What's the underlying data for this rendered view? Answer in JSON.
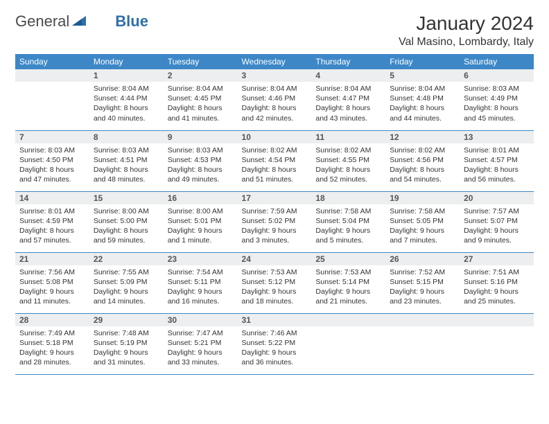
{
  "logo": {
    "word1": "General",
    "word2": "Blue"
  },
  "title": "January 2024",
  "location": "Val Masino, Lombardy, Italy",
  "colors": {
    "header_bg": "#3d87c7",
    "header_fg": "#ffffff",
    "daynum_bg": "#eceeef",
    "daynum_fg": "#555555",
    "border": "#3d87c7",
    "logo_blue": "#2f6fa8"
  },
  "weekdays": [
    "Sunday",
    "Monday",
    "Tuesday",
    "Wednesday",
    "Thursday",
    "Friday",
    "Saturday"
  ],
  "weeks": [
    [
      {
        "n": "",
        "lines": []
      },
      {
        "n": "1",
        "lines": [
          "Sunrise: 8:04 AM",
          "Sunset: 4:44 PM",
          "Daylight: 8 hours",
          "and 40 minutes."
        ]
      },
      {
        "n": "2",
        "lines": [
          "Sunrise: 8:04 AM",
          "Sunset: 4:45 PM",
          "Daylight: 8 hours",
          "and 41 minutes."
        ]
      },
      {
        "n": "3",
        "lines": [
          "Sunrise: 8:04 AM",
          "Sunset: 4:46 PM",
          "Daylight: 8 hours",
          "and 42 minutes."
        ]
      },
      {
        "n": "4",
        "lines": [
          "Sunrise: 8:04 AM",
          "Sunset: 4:47 PM",
          "Daylight: 8 hours",
          "and 43 minutes."
        ]
      },
      {
        "n": "5",
        "lines": [
          "Sunrise: 8:04 AM",
          "Sunset: 4:48 PM",
          "Daylight: 8 hours",
          "and 44 minutes."
        ]
      },
      {
        "n": "6",
        "lines": [
          "Sunrise: 8:03 AM",
          "Sunset: 4:49 PM",
          "Daylight: 8 hours",
          "and 45 minutes."
        ]
      }
    ],
    [
      {
        "n": "7",
        "lines": [
          "Sunrise: 8:03 AM",
          "Sunset: 4:50 PM",
          "Daylight: 8 hours",
          "and 47 minutes."
        ]
      },
      {
        "n": "8",
        "lines": [
          "Sunrise: 8:03 AM",
          "Sunset: 4:51 PM",
          "Daylight: 8 hours",
          "and 48 minutes."
        ]
      },
      {
        "n": "9",
        "lines": [
          "Sunrise: 8:03 AM",
          "Sunset: 4:53 PM",
          "Daylight: 8 hours",
          "and 49 minutes."
        ]
      },
      {
        "n": "10",
        "lines": [
          "Sunrise: 8:02 AM",
          "Sunset: 4:54 PM",
          "Daylight: 8 hours",
          "and 51 minutes."
        ]
      },
      {
        "n": "11",
        "lines": [
          "Sunrise: 8:02 AM",
          "Sunset: 4:55 PM",
          "Daylight: 8 hours",
          "and 52 minutes."
        ]
      },
      {
        "n": "12",
        "lines": [
          "Sunrise: 8:02 AM",
          "Sunset: 4:56 PM",
          "Daylight: 8 hours",
          "and 54 minutes."
        ]
      },
      {
        "n": "13",
        "lines": [
          "Sunrise: 8:01 AM",
          "Sunset: 4:57 PM",
          "Daylight: 8 hours",
          "and 56 minutes."
        ]
      }
    ],
    [
      {
        "n": "14",
        "lines": [
          "Sunrise: 8:01 AM",
          "Sunset: 4:59 PM",
          "Daylight: 8 hours",
          "and 57 minutes."
        ]
      },
      {
        "n": "15",
        "lines": [
          "Sunrise: 8:00 AM",
          "Sunset: 5:00 PM",
          "Daylight: 8 hours",
          "and 59 minutes."
        ]
      },
      {
        "n": "16",
        "lines": [
          "Sunrise: 8:00 AM",
          "Sunset: 5:01 PM",
          "Daylight: 9 hours",
          "and 1 minute."
        ]
      },
      {
        "n": "17",
        "lines": [
          "Sunrise: 7:59 AM",
          "Sunset: 5:02 PM",
          "Daylight: 9 hours",
          "and 3 minutes."
        ]
      },
      {
        "n": "18",
        "lines": [
          "Sunrise: 7:58 AM",
          "Sunset: 5:04 PM",
          "Daylight: 9 hours",
          "and 5 minutes."
        ]
      },
      {
        "n": "19",
        "lines": [
          "Sunrise: 7:58 AM",
          "Sunset: 5:05 PM",
          "Daylight: 9 hours",
          "and 7 minutes."
        ]
      },
      {
        "n": "20",
        "lines": [
          "Sunrise: 7:57 AM",
          "Sunset: 5:07 PM",
          "Daylight: 9 hours",
          "and 9 minutes."
        ]
      }
    ],
    [
      {
        "n": "21",
        "lines": [
          "Sunrise: 7:56 AM",
          "Sunset: 5:08 PM",
          "Daylight: 9 hours",
          "and 11 minutes."
        ]
      },
      {
        "n": "22",
        "lines": [
          "Sunrise: 7:55 AM",
          "Sunset: 5:09 PM",
          "Daylight: 9 hours",
          "and 14 minutes."
        ]
      },
      {
        "n": "23",
        "lines": [
          "Sunrise: 7:54 AM",
          "Sunset: 5:11 PM",
          "Daylight: 9 hours",
          "and 16 minutes."
        ]
      },
      {
        "n": "24",
        "lines": [
          "Sunrise: 7:53 AM",
          "Sunset: 5:12 PM",
          "Daylight: 9 hours",
          "and 18 minutes."
        ]
      },
      {
        "n": "25",
        "lines": [
          "Sunrise: 7:53 AM",
          "Sunset: 5:14 PM",
          "Daylight: 9 hours",
          "and 21 minutes."
        ]
      },
      {
        "n": "26",
        "lines": [
          "Sunrise: 7:52 AM",
          "Sunset: 5:15 PM",
          "Daylight: 9 hours",
          "and 23 minutes."
        ]
      },
      {
        "n": "27",
        "lines": [
          "Sunrise: 7:51 AM",
          "Sunset: 5:16 PM",
          "Daylight: 9 hours",
          "and 25 minutes."
        ]
      }
    ],
    [
      {
        "n": "28",
        "lines": [
          "Sunrise: 7:49 AM",
          "Sunset: 5:18 PM",
          "Daylight: 9 hours",
          "and 28 minutes."
        ]
      },
      {
        "n": "29",
        "lines": [
          "Sunrise: 7:48 AM",
          "Sunset: 5:19 PM",
          "Daylight: 9 hours",
          "and 31 minutes."
        ]
      },
      {
        "n": "30",
        "lines": [
          "Sunrise: 7:47 AM",
          "Sunset: 5:21 PM",
          "Daylight: 9 hours",
          "and 33 minutes."
        ]
      },
      {
        "n": "31",
        "lines": [
          "Sunrise: 7:46 AM",
          "Sunset: 5:22 PM",
          "Daylight: 9 hours",
          "and 36 minutes."
        ]
      },
      {
        "n": "",
        "lines": []
      },
      {
        "n": "",
        "lines": []
      },
      {
        "n": "",
        "lines": []
      }
    ]
  ]
}
